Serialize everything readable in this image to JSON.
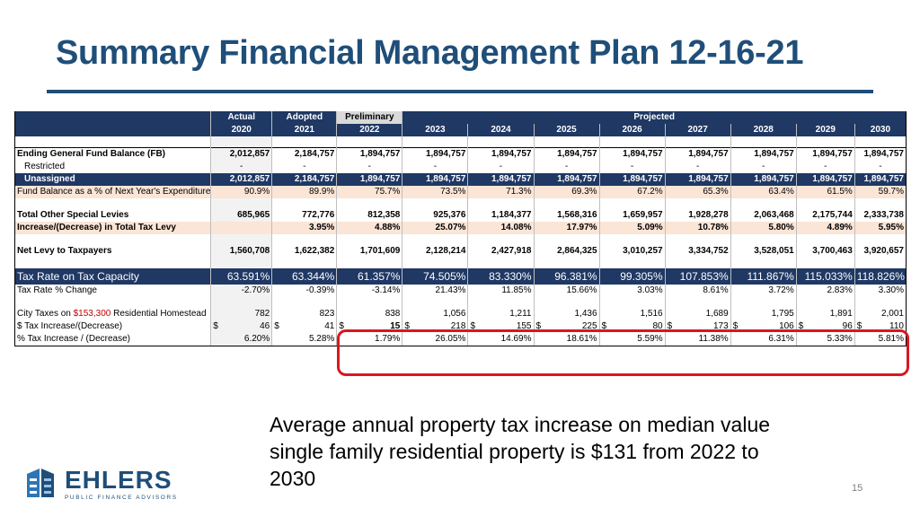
{
  "slide": {
    "title": "Summary Financial Management Plan 12-16-21",
    "note": "Average annual property tax increase on median value single family residential property is $131 from 2022 to 2030",
    "page_number": "15",
    "logo_text": "EHLERS",
    "logo_tagline": "PUBLIC FINANCE ADVISORS"
  },
  "table": {
    "header1": {
      "actual": "Actual",
      "adopted": "Adopted",
      "preliminary": "Preliminary",
      "projected": "Projected"
    },
    "years": [
      "2020",
      "2021",
      "2022",
      "2023",
      "2024",
      "2025",
      "2026",
      "2027",
      "2028",
      "2029",
      "2030"
    ],
    "rows": {
      "ending_fb": {
        "label": "Ending General Fund Balance (FB)",
        "values": [
          "2,012,857",
          "2,184,757",
          "1,894,757",
          "1,894,757",
          "1,894,757",
          "1,894,757",
          "1,894,757",
          "1,894,757",
          "1,894,757",
          "1,894,757",
          "1,894,757"
        ]
      },
      "restricted": {
        "label": "Restricted",
        "values": [
          "-",
          "-",
          "-",
          "-",
          "-",
          "-",
          "-",
          "-",
          "-",
          "-",
          "-"
        ]
      },
      "unassigned": {
        "label": "Unassigned",
        "values": [
          "2,012,857",
          "2,184,757",
          "1,894,757",
          "1,894,757",
          "1,894,757",
          "1,894,757",
          "1,894,757",
          "1,894,757",
          "1,894,757",
          "1,894,757",
          "1,894,757"
        ]
      },
      "fb_pct": {
        "label": "Fund Balance as a % of Next Year's Expenditures",
        "values": [
          "90.9%",
          "89.9%",
          "75.7%",
          "73.5%",
          "71.3%",
          "69.3%",
          "67.2%",
          "65.3%",
          "63.4%",
          "61.5%",
          "59.7%"
        ]
      },
      "special_levies": {
        "label": "Total Other Special Levies",
        "values": [
          "685,965",
          "772,776",
          "812,358",
          "925,376",
          "1,184,377",
          "1,568,316",
          "1,659,957",
          "1,928,278",
          "2,063,468",
          "2,175,744",
          "2,333,738"
        ]
      },
      "levy_change": {
        "label": "Increase/(Decrease) in Total Tax Levy",
        "values": [
          "",
          "3.95%",
          "4.88%",
          "25.07%",
          "14.08%",
          "17.97%",
          "5.09%",
          "10.78%",
          "5.80%",
          "4.89%",
          "5.95%"
        ]
      },
      "net_levy": {
        "label": "Net Levy to Taxpayers",
        "values": [
          "1,560,708",
          "1,622,382",
          "1,701,609",
          "2,128,214",
          "2,427,918",
          "2,864,325",
          "3,010,257",
          "3,334,752",
          "3,528,051",
          "3,700,463",
          "3,920,657"
        ]
      },
      "tax_rate": {
        "label": "Tax Rate on Tax Capacity",
        "values": [
          "63.591%",
          "63.344%",
          "61.357%",
          "74.505%",
          "83.330%",
          "96.381%",
          "99.305%",
          "107.853%",
          "111.867%",
          "115.033%",
          "118.826%"
        ]
      },
      "tax_rate_change": {
        "label": "Tax Rate % Change",
        "values": [
          "-2.70%",
          "-0.39%",
          "-3.14%",
          "21.43%",
          "11.85%",
          "15.66%",
          "3.03%",
          "8.61%",
          "3.72%",
          "2.83%",
          "3.30%"
        ]
      },
      "city_taxes": {
        "label_pre": "City Taxes on ",
        "label_amount": "$153,300",
        "label_post": " Residential Homestead",
        "values": [
          "782",
          "823",
          "838",
          "1,056",
          "1,211",
          "1,436",
          "1,516",
          "1,689",
          "1,795",
          "1,891",
          "2,001"
        ]
      },
      "dollar_change": {
        "label": "$ Tax Increase/(Decrease)",
        "currency": "$",
        "values": [
          "46",
          "41",
          "15",
          "218",
          "155",
          "225",
          "80",
          "173",
          "106",
          "96",
          "110"
        ]
      },
      "pct_change": {
        "label": "% Tax Increase / (Decrease)",
        "values": [
          "6.20%",
          "5.28%",
          "1.79%",
          "26.05%",
          "14.69%",
          "18.61%",
          "5.59%",
          "11.38%",
          "6.31%",
          "5.33%",
          "5.81%"
        ]
      }
    }
  },
  "colors": {
    "title": "#1f4e79",
    "header_bg": "#1f3864",
    "peach": "#fbe5d6",
    "highlight": "#d9171f",
    "accent_red": "#c00000"
  }
}
